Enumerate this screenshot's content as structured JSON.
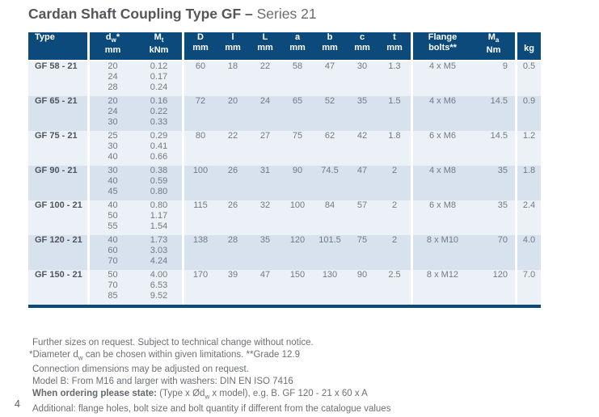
{
  "page": {
    "number": "4"
  },
  "title": {
    "bold": "Cardan Shaft Coupling Type GF –",
    "regular": "Series 21"
  },
  "colors": {
    "header_bg": "#0d4a7c",
    "row_light": "#ecf1f7",
    "row_dark": "#d8e1ee",
    "bottom_border": "#0d4a7c",
    "header_text": "#ffffff",
    "body_text": "#707a85"
  },
  "table": {
    "columns": {
      "type": {
        "label": "Type"
      },
      "dw": {
        "base": "d",
        "sub": "w",
        "sup": "*",
        "unit": "mm"
      },
      "mt": {
        "base": "M",
        "sub": "t",
        "unit": "kNm"
      },
      "dims": [
        {
          "base": "D",
          "unit": "mm"
        },
        {
          "base": "l",
          "unit": "mm"
        },
        {
          "base": "L",
          "unit": "mm"
        },
        {
          "base": "a",
          "unit": "mm"
        },
        {
          "base": "b",
          "unit": "mm"
        },
        {
          "base": "c",
          "unit": "mm"
        },
        {
          "base": "t",
          "unit": "mm"
        }
      ],
      "flange": {
        "line1": "Flange",
        "line2": "bolts**"
      },
      "ma": {
        "base": "M",
        "sub": "a",
        "unit": "Nm"
      },
      "kg": {
        "label": "kg"
      }
    },
    "rows": [
      {
        "type": "GF 58 - 21",
        "dw": [
          "20",
          "24",
          "28"
        ],
        "mt": [
          "0.12",
          "0.17",
          "0.24"
        ],
        "dims": [
          "60",
          "18",
          "22",
          "58",
          "47",
          "30",
          "1.3"
        ],
        "flange": "4 x M5",
        "ma": "9",
        "kg": "0.5"
      },
      {
        "type": "GF 65 - 21",
        "dw": [
          "20",
          "24",
          "30"
        ],
        "mt": [
          "0.16",
          "0.22",
          "0.33"
        ],
        "dims": [
          "72",
          "20",
          "24",
          "65",
          "52",
          "35",
          "1.5"
        ],
        "flange": "4 x M6",
        "ma": "14.5",
        "kg": "0.9"
      },
      {
        "type": "GF 75 - 21",
        "dw": [
          "25",
          "30",
          "40"
        ],
        "mt": [
          "0.29",
          "0.41",
          "0.66"
        ],
        "dims": [
          "80",
          "22",
          "27",
          "75",
          "62",
          "42",
          "1.8"
        ],
        "flange": "6 x M6",
        "ma": "14.5",
        "kg": "1.2"
      },
      {
        "type": "GF 90 - 21",
        "dw": [
          "30",
          "40",
          "45"
        ],
        "mt": [
          "0.38",
          "0.59",
          "0.80"
        ],
        "dims": [
          "100",
          "26",
          "31",
          "90",
          "74.5",
          "47",
          "2"
        ],
        "flange": "4 x M8",
        "ma": "35",
        "kg": "1.8"
      },
      {
        "type": "GF 100 - 21",
        "dw": [
          "40",
          "50",
          "55"
        ],
        "mt": [
          "0.80",
          "1.17",
          "1.54"
        ],
        "dims": [
          "115",
          "26",
          "32",
          "100",
          "84",
          "57",
          "2"
        ],
        "flange": "6 x M8",
        "ma": "35",
        "kg": "2.4"
      },
      {
        "type": "GF 120 - 21",
        "dw": [
          "40",
          "60",
          "70"
        ],
        "mt": [
          "1.73",
          "3.03",
          "4.24"
        ],
        "dims": [
          "138",
          "28",
          "35",
          "120",
          "101.5",
          "75",
          "2"
        ],
        "flange": "8 x M10",
        "ma": "70",
        "kg": "4.0"
      },
      {
        "type": "GF 150 - 21",
        "dw": [
          "50",
          "70",
          "85"
        ],
        "mt": [
          "4.00",
          "6.53",
          "9.52"
        ],
        "dims": [
          "170",
          "39",
          "47",
          "150",
          "130",
          "90",
          "2.5"
        ],
        "flange": "8 x M12",
        "ma": "120",
        "kg": "7.0"
      }
    ]
  },
  "notes": {
    "line1": "Further sizes on request. Subject to technical change without notice.",
    "line2_pre": "*Diameter d",
    "line2_sub": "w",
    "line2_post": " can be chosen within given limitations. **Grade 12.9",
    "line3": "Connection dimensions may be adjusted on request.",
    "line4": "Model B: From M16 and larger with washers: DIN EN ISO 7416",
    "line5_bold": "When ordering please state:",
    "line5_pre": " (Type x Ød",
    "line5_sub": "w",
    "line5_post": " x model), e.g. B. GF 120 - 21 x 60 x A",
    "line6": "Additional: flange holes, bolt size and bolt quantity if different from the catalogue values"
  }
}
